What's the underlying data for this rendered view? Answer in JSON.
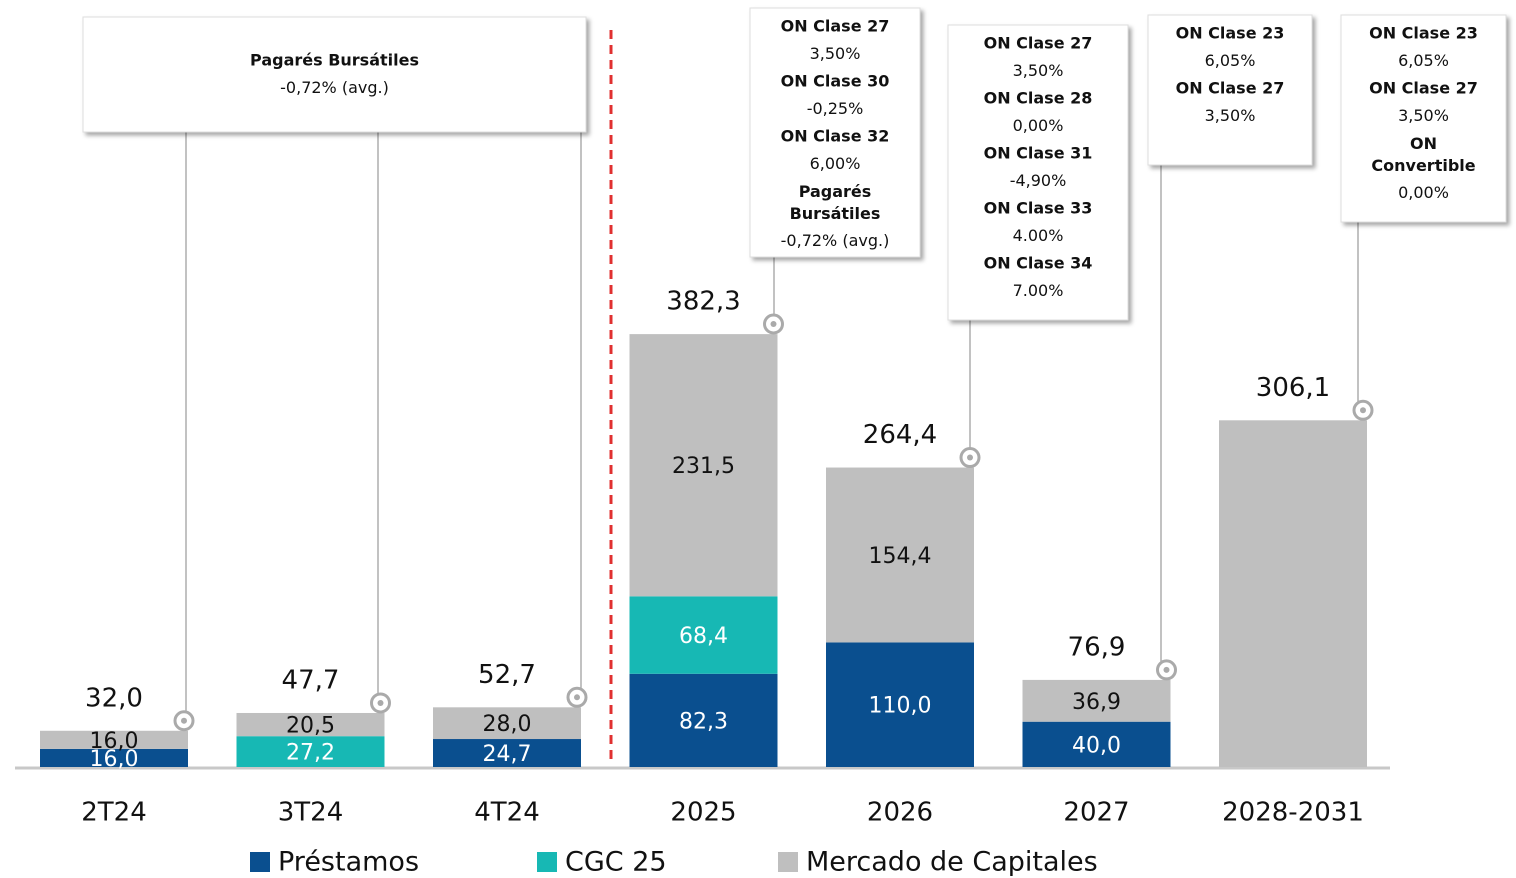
{
  "chart_data": {
    "type": "bar",
    "stacked": true,
    "categories": [
      "2T24",
      "3T24",
      "4T24",
      "2025",
      "2026",
      "2027",
      "2028-2031"
    ],
    "series": [
      {
        "name": "Préstamos",
        "color": "#0a4f8f",
        "values": [
          16.0,
          null,
          24.7,
          82.3,
          110.0,
          40.0,
          null
        ],
        "value_labels": [
          "16,0",
          null,
          "24,7",
          "82,3",
          "110,0",
          "40,0",
          null
        ]
      },
      {
        "name": "CGC 25",
        "color": "#17b8b4",
        "values": [
          null,
          27.2,
          null,
          68.4,
          null,
          null,
          null
        ],
        "value_labels": [
          null,
          "27,2",
          null,
          "68,4",
          null,
          null,
          null
        ]
      },
      {
        "name": "Mercado de Capitales",
        "color": "#bfbfbf",
        "values": [
          16.0,
          20.5,
          28.0,
          231.5,
          154.4,
          36.9,
          306.1
        ],
        "value_labels": [
          "16,0",
          "20,5",
          "28,0",
          "231,5",
          "154,4",
          "36,9",
          null
        ]
      }
    ],
    "totals": [
      32.0,
      47.7,
      52.7,
      382.3,
      264.4,
      76.9,
      306.1
    ],
    "total_labels": [
      "32,0",
      "47,7",
      "52,7",
      "382,3",
      "264,4",
      "76,9",
      "306,1"
    ],
    "callouts": [
      [
        {
          "title": "Pagarés Bursátiles",
          "rate": "-0,72% (avg.)"
        }
      ],
      [
        {
          "title": "ON Clase 27",
          "rate": "3,50%"
        },
        {
          "title": "ON Clase 30",
          "rate": "-0,25%"
        },
        {
          "title": "ON Clase 32",
          "rate": "6,00%"
        },
        {
          "title": "Pagarés Bursátiles",
          "rate": "-0,72% (avg.)"
        }
      ],
      [
        {
          "title": "ON Clase 27",
          "rate": "3,50%"
        },
        {
          "title": "ON Clase 28",
          "rate": "0,00%"
        },
        {
          "title": "ON Clase 31",
          "rate": "-4,90%"
        },
        {
          "title": "ON Clase 33",
          "rate": "4.00%"
        },
        {
          "title": "ON Clase 34",
          "rate": "7.00%"
        }
      ],
      [
        {
          "title": "ON Clase 23",
          "rate": "6,05%"
        },
        {
          "title": "ON Clase 27",
          "rate": "3,50%"
        }
      ],
      [
        {
          "title": "ON Clase 23",
          "rate": "6,05%"
        },
        {
          "title": "ON Clase 27",
          "rate": "3,50%"
        },
        {
          "title": "ON Convertible",
          "rate": "0,00%"
        }
      ]
    ]
  }
}
